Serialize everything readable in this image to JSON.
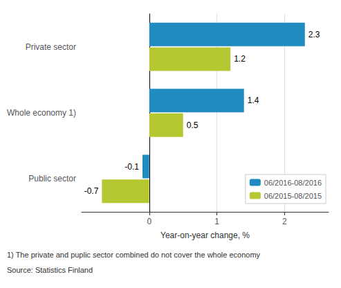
{
  "chart_data": {
    "type": "bar",
    "orientation": "horizontal",
    "categories": [
      "Public sector",
      "Whole economy 1)",
      "Private sector"
    ],
    "series": [
      {
        "name": "06/2016-08/2016",
        "color": "#1f8bbf",
        "values": [
          -0.1,
          1.4,
          2.3
        ]
      },
      {
        "name": "06/2015-08/2015",
        "color": "#b5c832",
        "values": [
          -0.7,
          0.5,
          1.2
        ]
      }
    ],
    "xlabel": "Year-on-year change, %",
    "xlim": [
      -1.0,
      2.65
    ],
    "xticks": [
      0,
      1,
      2
    ],
    "grid": true,
    "legend": "lower right",
    "data_labels": true,
    "annotations": [
      "1) The private and puplic sector combined do not cover the whole economy",
      "Source: Statistics Finland"
    ]
  }
}
